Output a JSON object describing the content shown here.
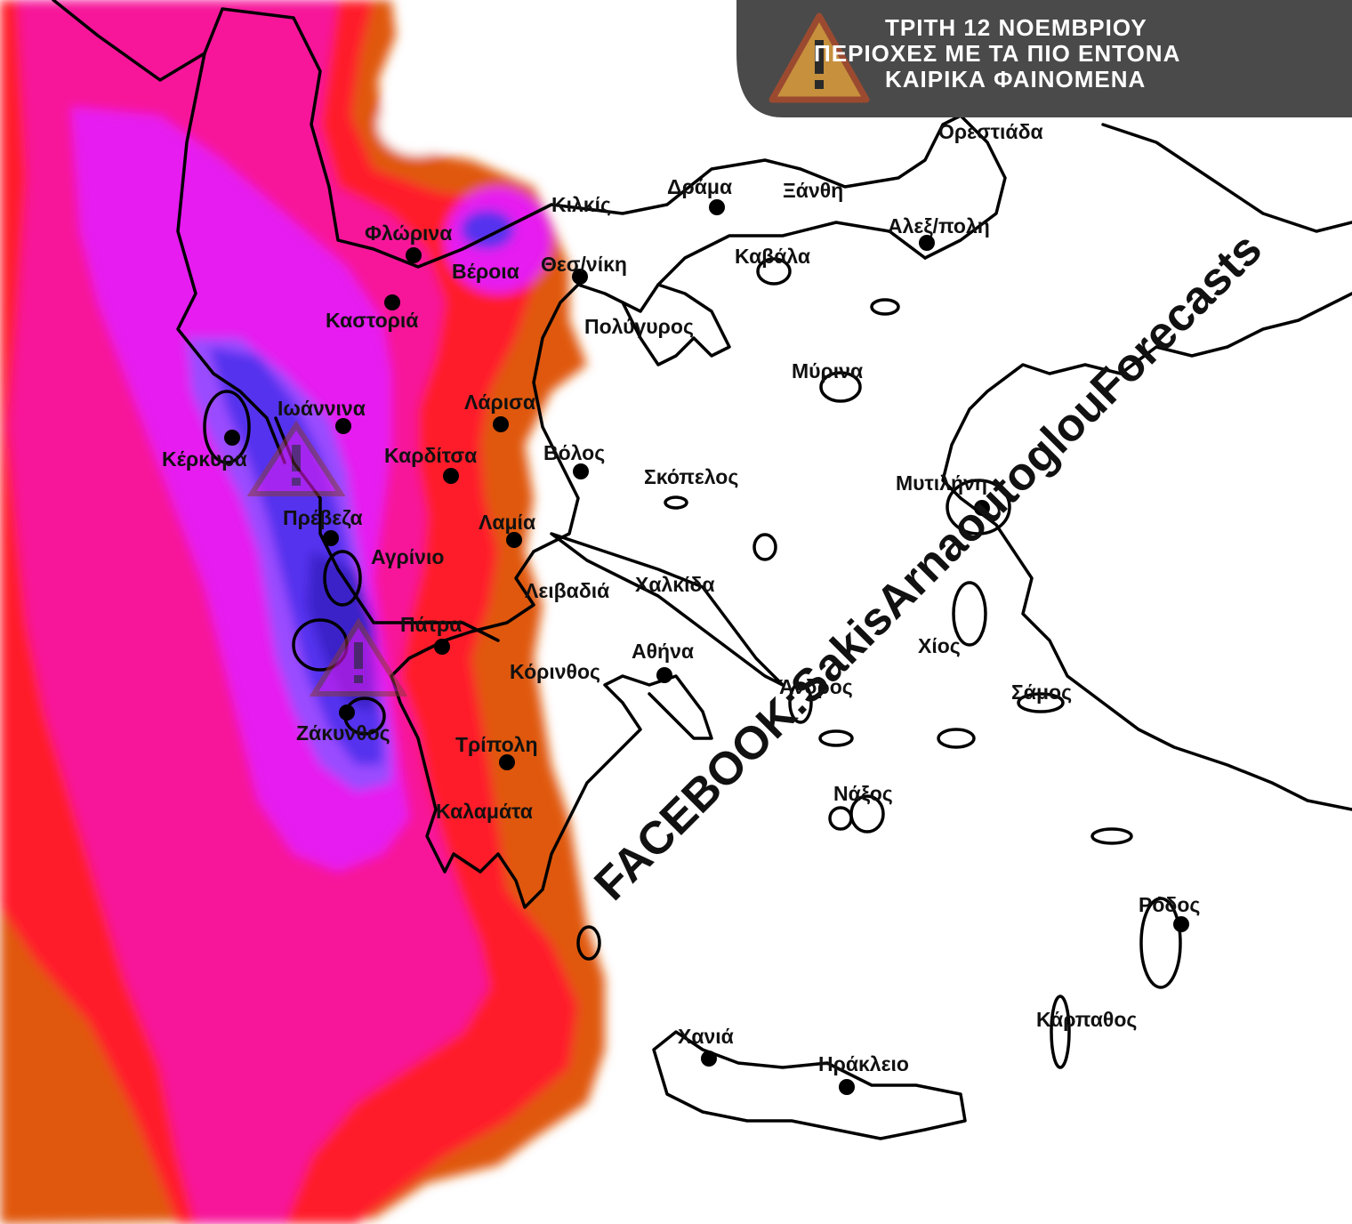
{
  "banner": {
    "line1": "ΤΡΙΤΗ 12 ΝΟΕΜΒΡΙΟΥ",
    "line2": "ΠΕΡΙΟΧΕΣ ΜΕ ΤΑ ΠΙΟ ΕΝΤΟΝΑ",
    "line3": "ΚΑΙΡΙΚΑ ΦΑΙΝΟΜΕΝΑ",
    "icon": "warning-triangle-icon"
  },
  "watermark": "FACEBOOK:SakisArnaoutoglouForecasts",
  "cities": [
    "Ορεστιάδα",
    "Κιλκίς",
    "Δράμα",
    "Ξάνθη",
    "Αλεξ/πολη",
    "Φλώρινα",
    "Βέροια",
    "Θεσ/νίκη",
    "Καβάλα",
    "Καστοριά",
    "Πολύγυρος",
    "Μύρινα",
    "Λάρισα",
    "Ιωάννινα",
    "Βόλος",
    "Καρδίτσα",
    "Κέρκυρα",
    "Σκόπελος",
    "Μυτιλήνη",
    "Πρέβεζα",
    "Λαμία",
    "Αγρίνιο",
    "Λειβαδιά",
    "Χαλκίδα",
    "Πάτρα",
    "Αθήνα",
    "Χίος",
    "Κόρινθος",
    "Άνδρος",
    "Σάμος",
    "Ζάκυνθος",
    "Τρίπολη",
    "Νάξος",
    "Καλαμάτα",
    "Ρόδος",
    "Κάρπαθος",
    "Χανιά",
    "Ηράκλειο"
  ],
  "colors": {
    "orange": "#e0580f",
    "red": "#ff1c2c",
    "pink": "#f7169a",
    "magenta": "#e61cf0",
    "violet": "#9a4cff",
    "blue": "#5530ee",
    "navy": "#3b20c8",
    "banner": "#4a4a4a"
  }
}
